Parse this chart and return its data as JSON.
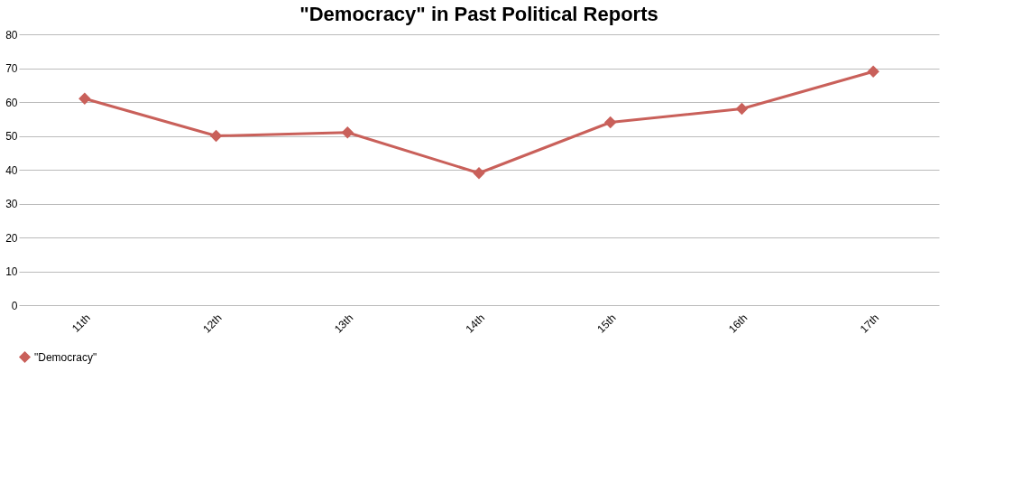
{
  "chart_data": {
    "type": "line",
    "title": "\"Democracy\" in Past Political Reports",
    "categories": [
      "11th",
      "12th",
      "13th",
      "14th",
      "15th",
      "16th",
      "17th"
    ],
    "series": [
      {
        "name": "\"Democracy\"",
        "color": "#c9605a",
        "values": [
          61,
          50,
          51,
          39,
          54,
          58,
          69
        ]
      }
    ],
    "ylim": [
      0,
      80
    ],
    "yticks": [
      0,
      10,
      20,
      30,
      40,
      50,
      60,
      70,
      80
    ],
    "grid": "y",
    "legend": "bottom",
    "marker": "diamond",
    "line_style": "solid"
  }
}
